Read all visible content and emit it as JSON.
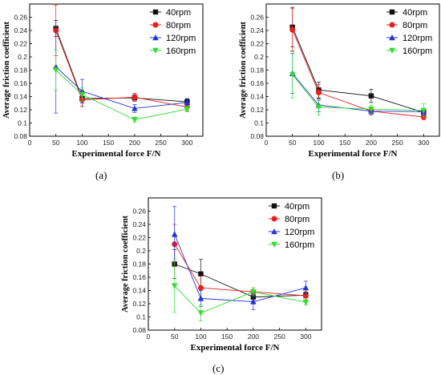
{
  "figure": {
    "panel_labels": [
      "(a)",
      "(b)",
      "(c)"
    ]
  },
  "colors": {
    "40rpm": "#111111",
    "80rpm": "#e8201c",
    "120rpm": "#2233d6",
    "160rpm": "#33dd33"
  },
  "chart_data": [
    {
      "type": "line",
      "panel": "(a)",
      "xlabel": "Experimental force F/N",
      "ylabel": "Average friction coefficient",
      "x": [
        50,
        100,
        200,
        300
      ],
      "xlim": [
        0,
        330
      ],
      "ylim": [
        0.08,
        0.28
      ],
      "xticks": [
        0,
        50,
        100,
        150,
        200,
        250,
        300
      ],
      "yticks": [
        0.08,
        0.1,
        0.12,
        0.14,
        0.16,
        0.18,
        0.2,
        0.22,
        0.24,
        0.26
      ],
      "legend": "top-right",
      "series": [
        {
          "name": "40rpm",
          "marker": "square",
          "values": [
            0.243,
            0.137,
            0.138,
            0.132
          ],
          "errors": [
            0.012,
            0.012,
            0.005,
            0.004
          ]
        },
        {
          "name": "80rpm",
          "marker": "circle",
          "values": [
            0.24,
            0.135,
            0.139,
            0.124
          ],
          "errors": [
            0.038,
            0.01,
            0.006,
            0.006
          ]
        },
        {
          "name": "120rpm",
          "marker": "triangle-up",
          "values": [
            0.185,
            0.148,
            0.122,
            0.131
          ],
          "errors": [
            0.07,
            0.018,
            0.006,
            0.006
          ]
        },
        {
          "name": "160rpm",
          "marker": "triangle-down",
          "values": [
            0.18,
            0.143,
            0.105,
            0.121
          ],
          "errors": [
            0.03,
            0.01,
            0.004,
            0.004
          ]
        }
      ]
    },
    {
      "type": "line",
      "panel": "(b)",
      "xlabel": "Experimental force F/N",
      "ylabel": "Average friction coefficient",
      "x": [
        50,
        100,
        200,
        300
      ],
      "xlim": [
        0,
        330
      ],
      "ylim": [
        0.08,
        0.28
      ],
      "xticks": [
        0,
        50,
        100,
        150,
        200,
        250,
        300
      ],
      "yticks": [
        0.08,
        0.1,
        0.12,
        0.14,
        0.16,
        0.18,
        0.2,
        0.22,
        0.24,
        0.26
      ],
      "legend": "top-right",
      "series": [
        {
          "name": "40rpm",
          "marker": "square",
          "values": [
            0.245,
            0.15,
            0.141,
            0.116
          ],
          "errors": [
            0.03,
            0.012,
            0.01,
            0.004
          ]
        },
        {
          "name": "80rpm",
          "marker": "circle",
          "values": [
            0.241,
            0.146,
            0.118,
            0.109
          ],
          "errors": [
            0.032,
            0.012,
            0.006,
            0.004
          ]
        },
        {
          "name": "120rpm",
          "marker": "triangle-up",
          "values": [
            0.175,
            0.127,
            0.118,
            0.117
          ],
          "errors": [
            0.03,
            0.01,
            0.005,
            0.005
          ]
        },
        {
          "name": "160rpm",
          "marker": "triangle-down",
          "values": [
            0.173,
            0.124,
            0.121,
            0.119
          ],
          "errors": [
            0.035,
            0.012,
            0.006,
            0.01
          ]
        }
      ]
    },
    {
      "type": "line",
      "panel": "(c)",
      "xlabel": "Experimental force F/N",
      "ylabel": "Average friction coefficient",
      "x": [
        50,
        100,
        200,
        300
      ],
      "xlim": [
        0,
        330
      ],
      "ylim": [
        0.08,
        0.28
      ],
      "xticks": [
        0,
        50,
        100,
        150,
        200,
        250,
        300
      ],
      "yticks": [
        0.08,
        0.1,
        0.12,
        0.14,
        0.16,
        0.18,
        0.2,
        0.22,
        0.24,
        0.26
      ],
      "legend": "top-right",
      "series": [
        {
          "name": "40rpm",
          "marker": "square",
          "values": [
            0.18,
            0.165,
            0.13,
            0.133
          ],
          "errors": [
            0.022,
            0.022,
            0.006,
            0.004
          ]
        },
        {
          "name": "80rpm",
          "marker": "circle",
          "values": [
            0.21,
            0.144,
            0.138,
            0.132
          ],
          "errors": [
            0.03,
            0.018,
            0.006,
            0.006
          ]
        },
        {
          "name": "120rpm",
          "marker": "triangle-up",
          "values": [
            0.225,
            0.128,
            0.123,
            0.144
          ],
          "errors": [
            0.042,
            0.012,
            0.012,
            0.01
          ]
        },
        {
          "name": "160rpm",
          "marker": "triangle-down",
          "values": [
            0.147,
            0.106,
            0.138,
            0.122
          ],
          "errors": [
            0.04,
            0.012,
            0.006,
            0.004
          ]
        }
      ]
    }
  ]
}
